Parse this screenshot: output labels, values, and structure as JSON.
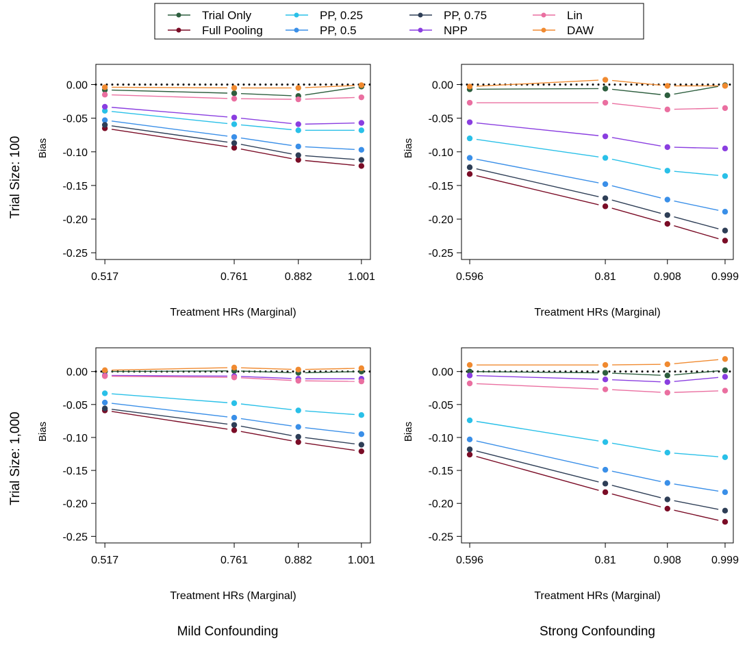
{
  "legend": {
    "items": [
      {
        "name": "Trial Only",
        "color": "#2d5e3e"
      },
      {
        "name": "Full Pooling",
        "color": "#7a0c26"
      },
      {
        "name": "PP, 0.25",
        "color": "#29c0e8"
      },
      {
        "name": "PP, 0.5",
        "color": "#3a8fe8"
      },
      {
        "name": "PP, 0.75",
        "color": "#2e3e56"
      },
      {
        "name": "NPP",
        "color": "#8a3ee0"
      },
      {
        "name": "Lin",
        "color": "#ea6fa0"
      },
      {
        "name": "DAW",
        "color": "#f08a30"
      }
    ]
  },
  "row_labels": [
    "Trial Size: 100",
    "Trial Size: 1,000"
  ],
  "col_labels": [
    "Mild Confounding",
    "Strong Confounding"
  ],
  "chart_data": [
    {
      "type": "line",
      "row": 0,
      "col": 0,
      "xlabel": "Treatment HRs (Marginal)",
      "ylabel": "Bias",
      "x": [
        0.517,
        0.761,
        0.882,
        1.001
      ],
      "xticks": [
        "0.517",
        "0.761",
        "0.882",
        "1.001"
      ],
      "xlim": [
        0.5,
        1.018
      ],
      "ylim": [
        -0.26,
        0.03
      ],
      "yticks": [
        "0.00",
        "-0.05",
        "-0.10",
        "-0.15",
        "-0.20",
        "-0.25"
      ],
      "reference_line": 0,
      "series": [
        {
          "name": "Trial Only",
          "values": [
            -0.008,
            -0.013,
            -0.017,
            -0.003
          ]
        },
        {
          "name": "Full Pooling",
          "values": [
            -0.065,
            -0.094,
            -0.112,
            -0.121
          ]
        },
        {
          "name": "PP, 0.25",
          "values": [
            -0.039,
            -0.059,
            -0.068,
            -0.068
          ]
        },
        {
          "name": "PP, 0.5",
          "values": [
            -0.053,
            -0.078,
            -0.092,
            -0.097
          ]
        },
        {
          "name": "PP, 0.75",
          "values": [
            -0.06,
            -0.087,
            -0.105,
            -0.112
          ]
        },
        {
          "name": "NPP",
          "values": [
            -0.033,
            -0.049,
            -0.059,
            -0.057
          ]
        },
        {
          "name": "Lin",
          "values": [
            -0.015,
            -0.021,
            -0.022,
            -0.019
          ]
        },
        {
          "name": "DAW",
          "values": [
            -0.004,
            -0.005,
            -0.005,
            -0.001
          ]
        }
      ]
    },
    {
      "type": "line",
      "row": 0,
      "col": 1,
      "xlabel": "Treatment HRs (Marginal)",
      "ylabel": "Bias",
      "x": [
        0.596,
        0.81,
        0.908,
        0.999
      ],
      "xticks": [
        "0.596",
        "0.81",
        "0.908",
        "0.999"
      ],
      "xlim": [
        0.583,
        1.012
      ],
      "ylim": [
        -0.26,
        0.03
      ],
      "yticks": [
        "0.00",
        "-0.05",
        "-0.10",
        "-0.15",
        "-0.20",
        "-0.25"
      ],
      "reference_line": 0,
      "series": [
        {
          "name": "Trial Only",
          "values": [
            -0.007,
            -0.006,
            -0.016,
            -0.001
          ]
        },
        {
          "name": "Full Pooling",
          "values": [
            -0.133,
            -0.181,
            -0.207,
            -0.232
          ]
        },
        {
          "name": "PP, 0.25",
          "values": [
            -0.08,
            -0.109,
            -0.128,
            -0.136
          ]
        },
        {
          "name": "PP, 0.5",
          "values": [
            -0.109,
            -0.148,
            -0.171,
            -0.189
          ]
        },
        {
          "name": "PP, 0.75",
          "values": [
            -0.123,
            -0.169,
            -0.194,
            -0.217
          ]
        },
        {
          "name": "NPP",
          "values": [
            -0.056,
            -0.077,
            -0.093,
            -0.095
          ]
        },
        {
          "name": "Lin",
          "values": [
            -0.027,
            -0.027,
            -0.037,
            -0.035
          ]
        },
        {
          "name": "DAW",
          "values": [
            -0.003,
            0.007,
            -0.002,
            -0.002
          ]
        }
      ]
    },
    {
      "type": "line",
      "row": 1,
      "col": 0,
      "xlabel": "Treatment HRs (Marginal)",
      "ylabel": "Bias",
      "x": [
        0.517,
        0.761,
        0.882,
        1.001
      ],
      "xticks": [
        "0.517",
        "0.761",
        "0.882",
        "1.001"
      ],
      "xlim": [
        0.5,
        1.018
      ],
      "ylim": [
        -0.26,
        0.036
      ],
      "yticks": [
        "0.00",
        "-0.05",
        "-0.10",
        "-0.15",
        "-0.20",
        "-0.25"
      ],
      "reference_line": 0,
      "series": [
        {
          "name": "Trial Only",
          "values": [
            0.0,
            0.001,
            -0.002,
            0.0
          ]
        },
        {
          "name": "Full Pooling",
          "values": [
            -0.059,
            -0.089,
            -0.107,
            -0.121
          ]
        },
        {
          "name": "PP, 0.25",
          "values": [
            -0.033,
            -0.048,
            -0.059,
            -0.066
          ]
        },
        {
          "name": "PP, 0.5",
          "values": [
            -0.047,
            -0.07,
            -0.084,
            -0.095
          ]
        },
        {
          "name": "PP, 0.75",
          "values": [
            -0.056,
            -0.081,
            -0.099,
            -0.111
          ]
        },
        {
          "name": "NPP",
          "values": [
            -0.006,
            -0.007,
            -0.011,
            -0.011
          ]
        },
        {
          "name": "Lin",
          "values": [
            -0.007,
            -0.009,
            -0.014,
            -0.015
          ]
        },
        {
          "name": "DAW",
          "values": [
            0.002,
            0.006,
            0.003,
            0.005
          ]
        }
      ]
    },
    {
      "type": "line",
      "row": 1,
      "col": 1,
      "xlabel": "Treatment HRs (Marginal)",
      "ylabel": "Bias",
      "x": [
        0.596,
        0.81,
        0.908,
        0.999
      ],
      "xticks": [
        "0.596",
        "0.81",
        "0.908",
        "0.999"
      ],
      "xlim": [
        0.583,
        1.012
      ],
      "ylim": [
        -0.26,
        0.036
      ],
      "yticks": [
        "0.00",
        "-0.05",
        "-0.10",
        "-0.15",
        "-0.20",
        "-0.25"
      ],
      "reference_line": 0,
      "series": [
        {
          "name": "Trial Only",
          "values": [
            0.0,
            -0.002,
            -0.006,
            0.002
          ]
        },
        {
          "name": "Full Pooling",
          "values": [
            -0.126,
            -0.183,
            -0.208,
            -0.228
          ]
        },
        {
          "name": "PP, 0.25",
          "values": [
            -0.074,
            -0.107,
            -0.123,
            -0.13
          ]
        },
        {
          "name": "PP, 0.5",
          "values": [
            -0.103,
            -0.149,
            -0.169,
            -0.183
          ]
        },
        {
          "name": "PP, 0.75",
          "values": [
            -0.118,
            -0.17,
            -0.194,
            -0.211
          ]
        },
        {
          "name": "NPP",
          "values": [
            -0.006,
            -0.012,
            -0.016,
            -0.008
          ]
        },
        {
          "name": "Lin",
          "values": [
            -0.018,
            -0.027,
            -0.032,
            -0.029
          ]
        },
        {
          "name": "DAW",
          "values": [
            0.01,
            0.01,
            0.011,
            0.019
          ]
        }
      ]
    }
  ]
}
